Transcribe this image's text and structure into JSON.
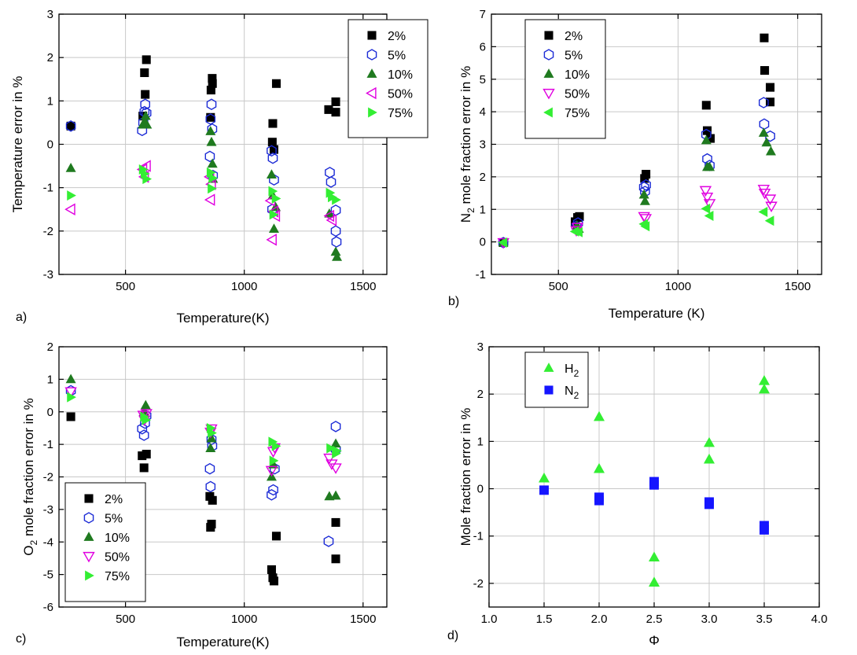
{
  "chart_data": [
    {
      "type": "scatter",
      "panel_label": "a)",
      "xlabel": "Temperature(K)",
      "ylabel": "Temperature error in %",
      "xlim": [
        220,
        1600
      ],
      "ylim": [
        -3,
        3
      ],
      "xticks": [
        500,
        1000,
        1500
      ],
      "yticks": [
        -3,
        -2,
        -1,
        0,
        1,
        2,
        3
      ],
      "grid": true,
      "legend_position": "top-right",
      "series": [
        {
          "name": "2%",
          "marker": "square",
          "color": "#000000",
          "points": [
            [
              270,
              0.42
            ],
            [
              573,
              0.65
            ],
            [
              580,
              1.65
            ],
            [
              583,
              1.15
            ],
            [
              588,
              1.95
            ],
            [
              858,
              0.62
            ],
            [
              860,
              1.25
            ],
            [
              865,
              1.52
            ],
            [
              866,
              1.4
            ],
            [
              1118,
              0.05
            ],
            [
              1120,
              0.48
            ],
            [
              1125,
              -0.12
            ],
            [
              1135,
              1.4
            ],
            [
              1355,
              0.8
            ],
            [
              1385,
              0.98
            ],
            [
              1385,
              0.74
            ]
          ]
        },
        {
          "name": "5%",
          "marker": "hexagon",
          "color": "#1c2bd6",
          "points": [
            [
              270,
              0.42
            ],
            [
              570,
              0.32
            ],
            [
              575,
              0.5
            ],
            [
              580,
              0.75
            ],
            [
              583,
              0.92
            ],
            [
              588,
              0.72
            ],
            [
              855,
              -0.28
            ],
            [
              858,
              0.58
            ],
            [
              862,
              0.92
            ],
            [
              865,
              0.35
            ],
            [
              868,
              -0.72
            ],
            [
              1115,
              -0.15
            ],
            [
              1120,
              -0.32
            ],
            [
              1125,
              -0.82
            ],
            [
              1118,
              -1.5
            ],
            [
              1360,
              -0.65
            ],
            [
              1365,
              -0.87
            ],
            [
              1385,
              -1.52
            ],
            [
              1385,
              -2.0
            ],
            [
              1388,
              -2.25
            ]
          ]
        },
        {
          "name": "10%",
          "marker": "triangle-up",
          "color": "#1f7a1f",
          "points": [
            [
              270,
              -0.55
            ],
            [
              573,
              0.45
            ],
            [
              580,
              0.52
            ],
            [
              585,
              0.65
            ],
            [
              590,
              0.45
            ],
            [
              858,
              0.3
            ],
            [
              862,
              0.05
            ],
            [
              866,
              -0.45
            ],
            [
              868,
              -0.8
            ],
            [
              1115,
              -0.7
            ],
            [
              1120,
              -1.18
            ],
            [
              1125,
              -1.95
            ],
            [
              1132,
              -1.45
            ],
            [
              1358,
              -1.6
            ],
            [
              1385,
              -2.48
            ],
            [
              1390,
              -2.6
            ]
          ]
        },
        {
          "name": "50%",
          "marker": "triangle-left-open",
          "color": "#e000e0",
          "points": [
            [
              270,
              -1.5
            ],
            [
              573,
              -0.58
            ],
            [
              580,
              -0.75
            ],
            [
              588,
              -0.5
            ],
            [
              855,
              -0.75
            ],
            [
              858,
              -1.28
            ],
            [
              862,
              -0.92
            ],
            [
              1112,
              -1.3
            ],
            [
              1118,
              -2.2
            ],
            [
              1125,
              -1.55
            ],
            [
              1132,
              -1.65
            ],
            [
              1360,
              -1.65
            ],
            [
              1370,
              -1.75
            ]
          ]
        },
        {
          "name": "75%",
          "marker": "triangle-right",
          "color": "#33ee33",
          "points": [
            [
              270,
              -1.18
            ],
            [
              573,
              -0.58
            ],
            [
              580,
              -0.68
            ],
            [
              588,
              -0.8
            ],
            [
              858,
              -0.65
            ],
            [
              862,
              -1.02
            ],
            [
              866,
              -0.78
            ],
            [
              1118,
              -1.08
            ],
            [
              1122,
              -1.62
            ],
            [
              1132,
              -1.25
            ],
            [
              1360,
              -1.12
            ],
            [
              1368,
              -1.22
            ],
            [
              1385,
              -1.28
            ]
          ]
        }
      ]
    },
    {
      "type": "scatter",
      "panel_label": "b)",
      "xlabel": "Temperature (K)",
      "ylabel_main": "N",
      "ylabel_sub": "2",
      "ylabel_rest": " mole fraction error in %",
      "xlim": [
        220,
        1600
      ],
      "ylim": [
        -1,
        7
      ],
      "xticks": [
        500,
        1000,
        1500
      ],
      "yticks": [
        -1,
        0,
        1,
        2,
        3,
        4,
        5,
        6,
        7
      ],
      "grid": true,
      "legend_position": "top-left",
      "series": [
        {
          "name": "2%",
          "marker": "square",
          "color": "#000000",
          "points": [
            [
              270,
              -0.02
            ],
            [
              570,
              0.62
            ],
            [
              580,
              0.75
            ],
            [
              588,
              0.78
            ],
            [
              860,
              1.95
            ],
            [
              866,
              2.08
            ],
            [
              1118,
              4.2
            ],
            [
              1122,
              3.42
            ],
            [
              1135,
              3.18
            ],
            [
              1360,
              6.27
            ],
            [
              1362,
              5.27
            ],
            [
              1385,
              4.75
            ],
            [
              1385,
              4.3
            ]
          ]
        },
        {
          "name": "5%",
          "marker": "hexagon",
          "color": "#1c2bd6",
          "points": [
            [
              270,
              -0.02
            ],
            [
              575,
              0.48
            ],
            [
              582,
              0.58
            ],
            [
              858,
              1.68
            ],
            [
              862,
              1.55
            ],
            [
              866,
              1.75
            ],
            [
              1118,
              3.3
            ],
            [
              1122,
              2.55
            ],
            [
              1132,
              2.35
            ],
            [
              1358,
              4.28
            ],
            [
              1360,
              3.62
            ],
            [
              1385,
              3.25
            ]
          ]
        },
        {
          "name": "10%",
          "marker": "triangle-up",
          "color": "#1f7a1f",
          "points": [
            [
              270,
              -0.02
            ],
            [
              578,
              0.5
            ],
            [
              585,
              0.4
            ],
            [
              858,
              1.45
            ],
            [
              862,
              1.25
            ],
            [
              1118,
              3.12
            ],
            [
              1122,
              2.3
            ],
            [
              1132,
              2.3
            ],
            [
              1358,
              3.35
            ],
            [
              1370,
              3.05
            ],
            [
              1388,
              2.78
            ]
          ]
        },
        {
          "name": "50%",
          "marker": "triangle-down-open",
          "color": "#e000e0",
          "points": [
            [
              270,
              -0.02
            ],
            [
              575,
              0.35
            ],
            [
              580,
              0.45
            ],
            [
              858,
              0.78
            ],
            [
              865,
              0.72
            ],
            [
              1115,
              1.58
            ],
            [
              1122,
              1.38
            ],
            [
              1132,
              1.18
            ],
            [
              1358,
              1.62
            ],
            [
              1362,
              1.5
            ],
            [
              1385,
              1.32
            ],
            [
              1390,
              1.1
            ]
          ]
        },
        {
          "name": "75%",
          "marker": "triangle-left",
          "color": "#33ee33",
          "points": [
            [
              270,
              -0.02
            ],
            [
              570,
              0.32
            ],
            [
              585,
              0.3
            ],
            [
              858,
              0.55
            ],
            [
              865,
              0.48
            ],
            [
              1118,
              1.02
            ],
            [
              1132,
              0.8
            ],
            [
              1358,
              0.92
            ],
            [
              1385,
              0.65
            ]
          ]
        }
      ]
    },
    {
      "type": "scatter",
      "panel_label": "c)",
      "xlabel": "Temperature(K)",
      "ylabel_main": "O",
      "ylabel_sub": "2",
      "ylabel_rest": " mole fraction error in %",
      "xlim": [
        220,
        1600
      ],
      "ylim": [
        -6,
        2
      ],
      "xticks": [
        500,
        1000,
        1500
      ],
      "yticks": [
        -6,
        -5,
        -4,
        -3,
        -2,
        -1,
        0,
        1,
        2
      ],
      "grid": true,
      "legend_position": "bottom-left",
      "series": [
        {
          "name": "2%",
          "marker": "square",
          "color": "#000000",
          "points": [
            [
              270,
              -0.15
            ],
            [
              570,
              -1.35
            ],
            [
              578,
              -1.72
            ],
            [
              588,
              -1.3
            ],
            [
              855,
              -2.6
            ],
            [
              858,
              -3.55
            ],
            [
              862,
              -3.45
            ],
            [
              866,
              -2.72
            ],
            [
              1115,
              -4.85
            ],
            [
              1120,
              -5.1
            ],
            [
              1125,
              -5.2
            ],
            [
              1135,
              -3.82
            ],
            [
              1385,
              -3.4
            ],
            [
              1385,
              -4.52
            ]
          ]
        },
        {
          "name": "5%",
          "marker": "hexagon",
          "color": "#1c2bd6",
          "points": [
            [
              270,
              0.65
            ],
            [
              570,
              -0.52
            ],
            [
              578,
              -0.72
            ],
            [
              582,
              -0.35
            ],
            [
              588,
              -0.12
            ],
            [
              855,
              -1.75
            ],
            [
              858,
              -2.3
            ],
            [
              862,
              -0.85
            ],
            [
              865,
              -1.05
            ],
            [
              1115,
              -2.55
            ],
            [
              1122,
              -2.4
            ],
            [
              1128,
              -1.75
            ],
            [
              1355,
              -3.98
            ],
            [
              1385,
              -0.45
            ],
            [
              1385,
              -1.15
            ]
          ]
        },
        {
          "name": "10%",
          "marker": "triangle-up",
          "color": "#1f7a1f",
          "points": [
            [
              270,
              1.0
            ],
            [
              578,
              0.0
            ],
            [
              585,
              0.2
            ],
            [
              858,
              -1.12
            ],
            [
              862,
              -0.82
            ],
            [
              1115,
              -2.0
            ],
            [
              1122,
              -1.62
            ],
            [
              1358,
              -2.6
            ],
            [
              1385,
              -2.58
            ],
            [
              1385,
              -0.98
            ]
          ]
        },
        {
          "name": "50%",
          "marker": "triangle-down-open",
          "color": "#e000e0",
          "points": [
            [
              270,
              0.62
            ],
            [
              575,
              -0.1
            ],
            [
              580,
              -0.25
            ],
            [
              588,
              -0.05
            ],
            [
              858,
              -0.62
            ],
            [
              862,
              -0.52
            ],
            [
              1115,
              -1.8
            ],
            [
              1122,
              -1.22
            ],
            [
              1128,
              -1.1
            ],
            [
              1358,
              -1.42
            ],
            [
              1368,
              -1.6
            ],
            [
              1385,
              -1.72
            ]
          ]
        },
        {
          "name": "75%",
          "marker": "triangle-right",
          "color": "#33ee33",
          "points": [
            [
              270,
              0.45
            ],
            [
              578,
              -0.15
            ],
            [
              585,
              -0.25
            ],
            [
              858,
              -0.5
            ],
            [
              862,
              -0.65
            ],
            [
              1118,
              -0.92
            ],
            [
              1122,
              -1.5
            ],
            [
              1132,
              -1.05
            ],
            [
              1362,
              -1.12
            ],
            [
              1385,
              -1.28
            ],
            [
              1388,
              -1.2
            ]
          ]
        }
      ]
    },
    {
      "type": "scatter",
      "panel_label": "d)",
      "xlabel": "Φ",
      "ylabel": "Mole fraction error in %",
      "xlim": [
        1.0,
        4.0
      ],
      "ylim": [
        -2.5,
        3
      ],
      "xticks": [
        1.0,
        1.5,
        2.0,
        2.5,
        3.0,
        3.5,
        4.0
      ],
      "xtick_labels": [
        "1.0",
        "1.5",
        "2.0",
        "2.5",
        "3.0",
        "3.5",
        "4.0"
      ],
      "yticks": [
        -2,
        -1,
        0,
        1,
        2,
        3
      ],
      "grid": true,
      "legend_position": "top-left",
      "series": [
        {
          "name_main": "H",
          "name_sub": "2",
          "marker": "triangle-up",
          "color": "#33ee33",
          "points": [
            [
              1.5,
              0.22
            ],
            [
              2.0,
              1.52
            ],
            [
              2.0,
              0.42
            ],
            [
              2.5,
              -1.45
            ],
            [
              2.5,
              -1.98
            ],
            [
              3.0,
              0.97
            ],
            [
              3.0,
              0.62
            ],
            [
              3.5,
              2.28
            ],
            [
              3.5,
              2.1
            ]
          ]
        },
        {
          "name_main": "N",
          "name_sub": "2",
          "marker": "square",
          "color": "#1515ff",
          "points": [
            [
              1.5,
              -0.03
            ],
            [
              2.0,
              -0.18
            ],
            [
              2.0,
              -0.25
            ],
            [
              2.5,
              0.15
            ],
            [
              2.5,
              0.08
            ],
            [
              3.0,
              -0.28
            ],
            [
              3.0,
              -0.33
            ],
            [
              3.5,
              -0.78
            ],
            [
              3.5,
              -0.87
            ]
          ]
        }
      ]
    }
  ]
}
